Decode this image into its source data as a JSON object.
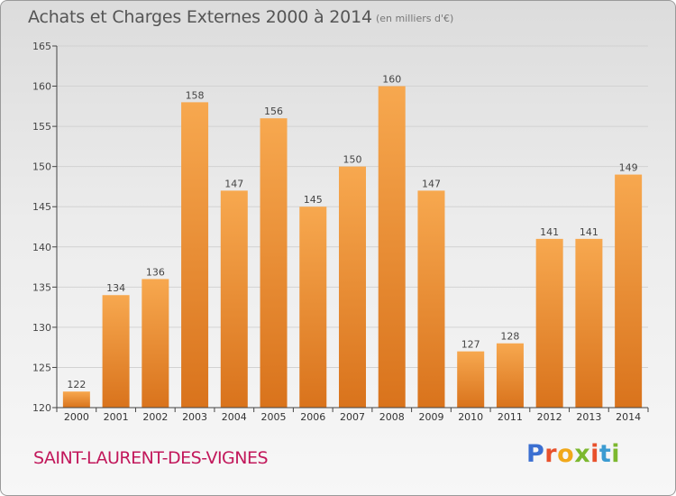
{
  "header": {
    "title": "Achats et Charges Externes 2000 à 2014",
    "subtitle": "(en milliers d'€)"
  },
  "footer": {
    "commune": "SAINT-LAURENT-DES-VIGNES",
    "logo": [
      "P",
      "r",
      "o",
      "x",
      "i",
      "t",
      "i"
    ],
    "logo_colors": [
      "#3b6fd1",
      "#e8512c",
      "#f1a81a",
      "#7cb82f",
      "#e8512c",
      "#3b9bd1",
      "#7cb82f"
    ]
  },
  "colors": {
    "bar_light": "#f7a84f",
    "bar_dark": "#d9731c",
    "axis": "#444444",
    "grid": "#d2d2d2"
  },
  "chart_data": {
    "type": "bar",
    "title": "Achats et Charges Externes 2000 à 2014",
    "subtitle": "(en milliers d'€)",
    "categories": [
      "2000",
      "2001",
      "2002",
      "2003",
      "2004",
      "2005",
      "2006",
      "2007",
      "2008",
      "2009",
      "2010",
      "2011",
      "2012",
      "2013",
      "2014"
    ],
    "values": [
      122,
      134,
      136,
      158,
      147,
      156,
      145,
      150,
      160,
      147,
      127,
      128,
      141,
      141,
      149
    ],
    "data_labels": [
      "122",
      "134",
      "136",
      "158",
      "147",
      "156",
      "145",
      "150",
      "160",
      "147",
      "127",
      "128",
      "141",
      "141",
      "149"
    ],
    "ylim": [
      120,
      165
    ],
    "yticks": [
      120,
      125,
      130,
      135,
      140,
      145,
      150,
      155,
      160,
      165
    ],
    "ytick_labels": [
      "120",
      "125",
      "130",
      "135",
      "140",
      "145",
      "150",
      "155",
      "160",
      "165"
    ],
    "grid": true,
    "xlabel": "",
    "ylabel": ""
  }
}
